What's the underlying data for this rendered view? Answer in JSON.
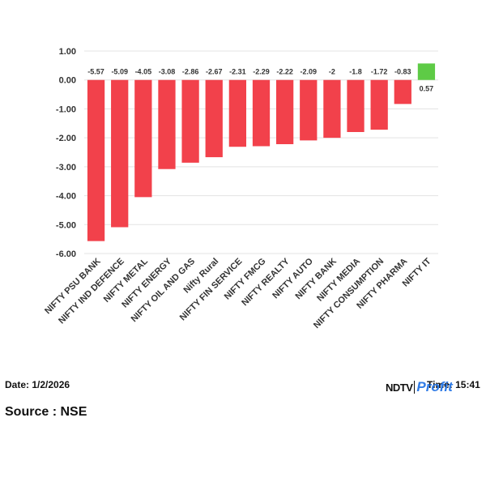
{
  "chart_data": {
    "type": "bar",
    "categories": [
      "NIFTY PSU BANK",
      "NIFTY IND DEFENCE",
      "NIFTY METAL",
      "NIFTY ENERGY",
      "NIFTY OIL AND GAS",
      "Nifty Rural",
      "NIFTY FIN SERVICE",
      "NIFTY FMCG",
      "NIFTY REALTY",
      "NIFTY AUTO",
      "NIFTY BANK",
      "NIFTY MEDIA",
      "NIFTY CONSUMPTION",
      "NIFTY PHARMA",
      "NIFTY IT"
    ],
    "values": [
      -5.57,
      -5.09,
      -4.05,
      -3.08,
      -2.86,
      -2.67,
      -2.31,
      -2.29,
      -2.22,
      -2.09,
      -2,
      -1.8,
      -1.72,
      -0.83,
      0.57
    ],
    "ylim": [
      -6,
      1
    ],
    "yticks": [
      "1.00",
      "0.00",
      "-1.00",
      "-2.00",
      "-3.00",
      "-4.00",
      "-5.00",
      "-6.00"
    ],
    "grid": true,
    "negative_color": "#f2414b",
    "positive_color": "#5ecb46"
  },
  "footer": {
    "date": "Date: 1/2/2026",
    "time": "Time: 15:41",
    "source": "Source : NSE",
    "logo_ndtv": "NDTV",
    "logo_profit": "Profit"
  }
}
